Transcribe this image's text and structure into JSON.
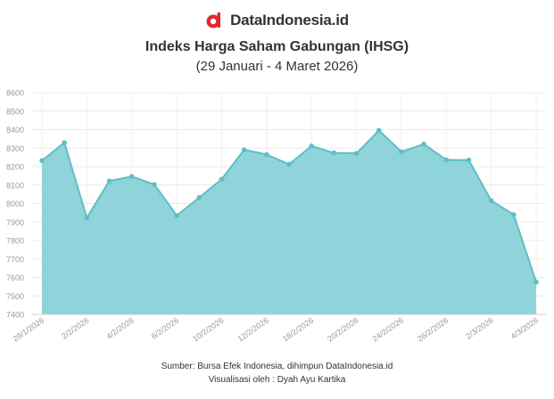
{
  "brand": {
    "name": "DataIndonesia.id",
    "logo_icon": "dataindonesia-logo-icon",
    "logo_color": "#e0282f"
  },
  "chart": {
    "title": "Indeks Harga Saham Gabungan (IHSG)",
    "subtitle": "(29 Januari - 4 Maret 2026)"
  },
  "footer": {
    "source": "Sumber: Bursa Efek Indonesia, dihimpun DataIndonesia.id",
    "credit": "Visualisasi oleh : Dyah Ayu Kartika"
  },
  "chart_data": {
    "type": "area",
    "title": "Indeks Harga Saham Gabungan (IHSG)",
    "subtitle": "(29 Januari - 4 Maret 2026)",
    "xlabel": "",
    "ylabel": "",
    "ylim": [
      7400,
      8600
    ],
    "y_ticks": [
      7400,
      7500,
      7600,
      7700,
      7800,
      7900,
      8000,
      8100,
      8200,
      8300,
      8400,
      8500,
      8600
    ],
    "x": [
      "29/1/2026",
      "30/1/2026",
      "2/2/2026",
      "3/2/2026",
      "4/2/2026",
      "5/2/2026",
      "6/2/2026",
      "9/2/2026",
      "10/2/2026",
      "11/2/2026",
      "12/2/2026",
      "13/2/2026",
      "18/2/2026",
      "19/2/2026",
      "20/2/2026",
      "23/2/2026",
      "24/2/2026",
      "25/2/2026",
      "26/2/2026",
      "27/2/2026",
      "2/3/2026",
      "3/3/2026",
      "4/3/2026"
    ],
    "x_tick_labels": [
      "29/1/2026",
      "2/2/2026",
      "4/2/2026",
      "6/2/2026",
      "10/2/2026",
      "12/2/2026",
      "18/2/2026",
      "20/2/2026",
      "24/2/2026",
      "26/2/2026",
      "2/3/2026",
      "4/3/2026"
    ],
    "values": [
      8232,
      8329,
      7922,
      8122,
      8146,
      8103,
      7935,
      8032,
      8131,
      8291,
      8265,
      8212,
      8311,
      8274,
      8271,
      8395,
      8280,
      8321,
      8236,
      8235,
      8015,
      7940,
      7575
    ],
    "fill_color": "#8fd4da",
    "line_color": "#5fbec6",
    "grid": true
  }
}
